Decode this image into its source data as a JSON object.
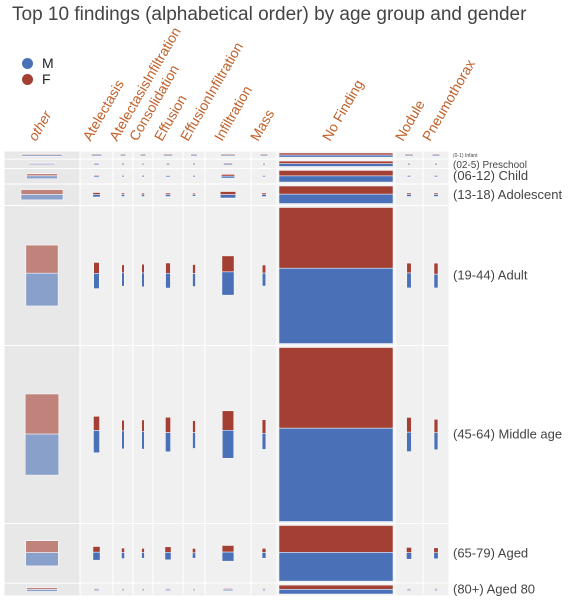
{
  "chart_data": {
    "type": "mosaic",
    "title": "Top 10 findings (alphabetical order) by age group and gender",
    "legend": [
      {
        "key": "M",
        "label": "M",
        "color": "#4a70b8"
      },
      {
        "key": "F",
        "label": "F",
        "color": "#a33f33"
      }
    ],
    "legend_position": "top-left",
    "columns": [
      "other",
      "Atelectasis",
      "AtelectasisInfiltration",
      "Consolidation",
      "Effusion",
      "EffusionInfiltration",
      "Infiltration",
      "Mass",
      "No Finding",
      "Nodule",
      "Pneumothorax"
    ],
    "column_label_color": "#c0612b",
    "rows": [
      "(0-1) Infant",
      "(02-5) Preschool",
      "(06-12) Child",
      "(13-18) Adolescent",
      "(19-44) Adult",
      "(45-64) Middle age",
      "(65-79) Aged",
      "(80+) Aged 80"
    ],
    "values_note": "counts approximate",
    "counts": {
      "M": [
        [
          3,
          1,
          1,
          1,
          1,
          1,
          1,
          1,
          8,
          1,
          1
        ],
        [
          30,
          8,
          6,
          4,
          4,
          3,
          10,
          3,
          200,
          3,
          3
        ],
        [
          200,
          40,
          30,
          30,
          28,
          25,
          100,
          20,
          1000,
          25,
          25
        ],
        [
          500,
          100,
          60,
          55,
          60,
          45,
          200,
          60,
          1500,
          60,
          60
        ],
        [
          3500,
          700,
          500,
          550,
          650,
          500,
          1600,
          480,
          18000,
          650,
          600
        ],
        [
          4500,
          1100,
          700,
          700,
          900,
          600,
          1800,
          650,
          22000,
          900,
          700
        ],
        [
          1300,
          420,
          250,
          220,
          380,
          200,
          550,
          220,
          6200,
          300,
          260
        ],
        [
          120,
          25,
          20,
          15,
          30,
          12,
          40,
          15,
          650,
          20,
          15
        ]
      ],
      "F": [
        [
          2,
          1,
          1,
          1,
          1,
          1,
          1,
          1,
          8,
          1,
          1
        ],
        [
          20,
          5,
          5,
          3,
          3,
          3,
          8,
          2,
          180,
          2,
          2
        ],
        [
          150,
          30,
          25,
          25,
          20,
          20,
          90,
          15,
          900,
          20,
          20
        ],
        [
          450,
          80,
          50,
          50,
          50,
          40,
          180,
          55,
          1300,
          50,
          50
        ],
        [
          3000,
          500,
          300,
          350,
          450,
          350,
          1100,
          300,
          14500,
          430,
          480
        ],
        [
          4400,
          700,
          420,
          450,
          720,
          450,
          1250,
          550,
          19000,
          680,
          550
        ],
        [
          1150,
          300,
          180,
          160,
          280,
          170,
          400,
          160,
          5800,
          240,
          210
        ],
        [
          110,
          20,
          15,
          15,
          25,
          10,
          30,
          12,
          600,
          15,
          12
        ]
      ]
    }
  }
}
